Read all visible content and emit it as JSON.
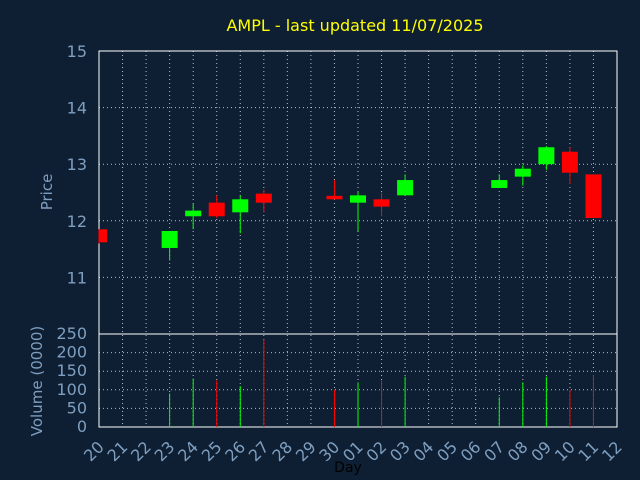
{
  "chart_data": {
    "type": "candlestick",
    "title": "AMPL - last updated 11/07/2025",
    "xlabel": "Day",
    "price_panel": {
      "ylabel": "Price",
      "ylim": [
        10.0,
        15.0
      ],
      "yticks": [
        11,
        12,
        13,
        14,
        15
      ]
    },
    "volume_panel": {
      "ylabel": "Volume (0000)",
      "ylim": [
        0,
        250
      ],
      "yticks": [
        0,
        50,
        100,
        150,
        200,
        250
      ]
    },
    "x_tick_labels": [
      "20",
      "21",
      "22",
      "23",
      "24",
      "25",
      "26",
      "27",
      "28",
      "29",
      "30",
      "01",
      "02",
      "03",
      "04",
      "05",
      "06",
      "07",
      "08",
      "09",
      "10",
      "11",
      "12"
    ],
    "grid": true,
    "colors": {
      "background": "#0f1f33",
      "up": "#00ff00",
      "down": "#ff0000",
      "grid": "#ffffff",
      "axis_text": "#7f9fc0",
      "title": "#ffff00"
    },
    "candles": [
      {
        "day": "20",
        "open": 11.85,
        "close": 11.62,
        "high": 11.85,
        "low": 11.6,
        "volume": 0
      },
      {
        "day": "23",
        "open": 11.52,
        "close": 11.82,
        "high": 11.82,
        "low": 11.3,
        "volume": 90
      },
      {
        "day": "24",
        "open": 12.08,
        "close": 12.18,
        "high": 12.3,
        "low": 11.85,
        "volume": 130
      },
      {
        "day": "25",
        "open": 12.32,
        "close": 12.08,
        "high": 12.45,
        "low": 12.05,
        "volume": 125
      },
      {
        "day": "26",
        "open": 12.15,
        "close": 12.38,
        "high": 12.45,
        "low": 11.78,
        "volume": 110
      },
      {
        "day": "27",
        "open": 12.48,
        "close": 12.32,
        "high": 12.55,
        "low": 12.15,
        "volume": 235
      },
      {
        "day": "30",
        "open": 12.44,
        "close": 12.38,
        "high": 12.72,
        "low": 12.38,
        "volume": 100
      },
      {
        "day": "01",
        "open": 12.32,
        "close": 12.45,
        "high": 12.52,
        "low": 11.82,
        "volume": 120
      },
      {
        "day": "02",
        "open": 12.38,
        "close": 12.25,
        "high": 12.5,
        "low": 12.08,
        "volume": 125
      },
      {
        "day": "03",
        "open": 12.45,
        "close": 12.72,
        "high": 12.82,
        "low": 12.45,
        "volume": 135
      },
      {
        "day": "07",
        "open": 12.58,
        "close": 12.72,
        "high": 12.82,
        "low": 12.58,
        "volume": 80
      },
      {
        "day": "08",
        "open": 12.78,
        "close": 12.92,
        "high": 12.98,
        "low": 12.62,
        "volume": 120
      },
      {
        "day": "09",
        "open": 13.0,
        "close": 13.3,
        "high": 13.32,
        "low": 12.9,
        "volume": 135
      },
      {
        "day": "10",
        "open": 13.22,
        "close": 12.85,
        "high": 13.3,
        "low": 12.65,
        "volume": 100
      },
      {
        "day": "11",
        "open": 12.82,
        "close": 12.05,
        "high": 12.82,
        "low": 12.05,
        "volume": 140
      }
    ]
  }
}
